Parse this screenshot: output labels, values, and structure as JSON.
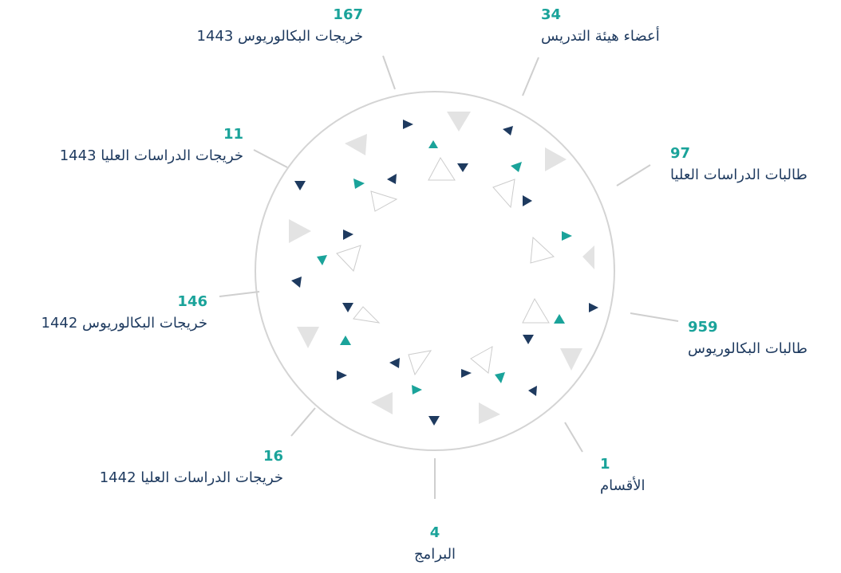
{
  "items": [
    {
      "number": "167",
      "label": "خريجات البكالوريوس 1443"
    },
    {
      "number": "34",
      "label": "أعضاء هيئة التدريس"
    },
    {
      "number": "97",
      "label": "طالبات الدراسات العليا"
    },
    {
      "number": "959",
      "label": "طالبات البكالوريوس"
    },
    {
      "number": "1",
      "label": "الأقسام"
    },
    {
      "number": "4",
      "label": "البرامج"
    },
    {
      "number": "16",
      "label": "خريجات الدراسات العليا 1442"
    },
    {
      "number": "146",
      "label": "خريجات البكالوريوس 1442"
    },
    {
      "number": "11",
      "label": "خريجات الدراسات العليا 1443"
    }
  ]
}
